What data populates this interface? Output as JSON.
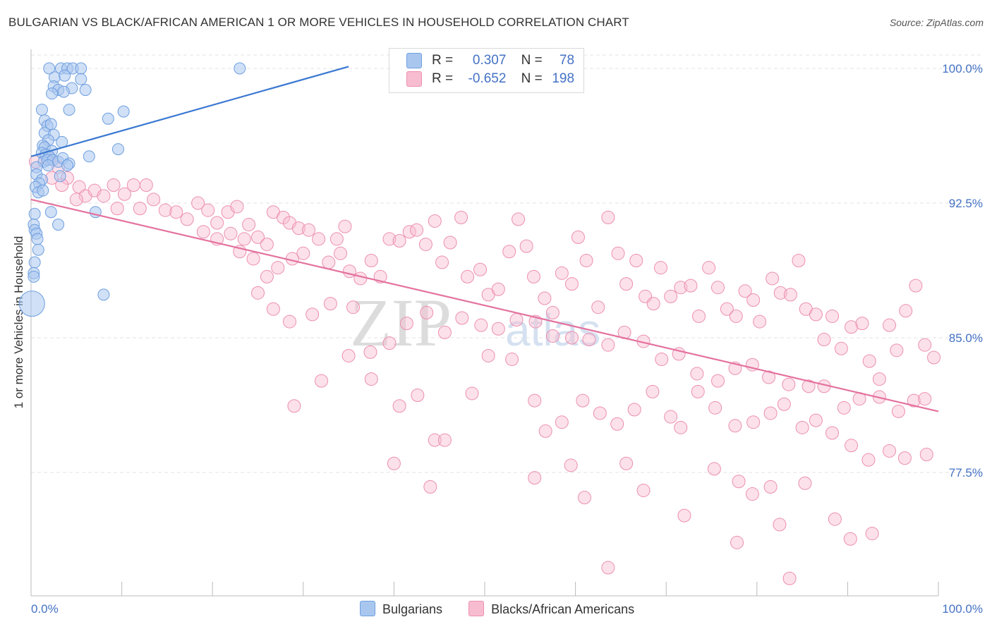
{
  "title": "BULGARIAN VS BLACK/AFRICAN AMERICAN 1 OR MORE VEHICLES IN HOUSEHOLD CORRELATION CHART",
  "source": "Source: ZipAtlas.com",
  "watermark": {
    "zip": "ZIP",
    "atlas": "atlas"
  },
  "legend": {
    "r_label": "R =",
    "n_label": "N =",
    "rows": [
      {
        "r": "0.307",
        "n": "78",
        "fill": "#a9c7ee",
        "stroke": "#6f9fe0"
      },
      {
        "r": "-0.652",
        "n": "198",
        "fill": "#f8bcd0",
        "stroke": "#ec8fb0"
      }
    ]
  },
  "bottom_legend": [
    "Bulgarians",
    "Blacks/African Americans"
  ],
  "chart_data": {
    "type": "scatter",
    "title": "BULGARIAN VS BLACK/AFRICAN AMERICAN 1 OR MORE VEHICLES IN HOUSEHOLD CORRELATION CHART",
    "xlabel": "",
    "ylabel": "1 or more Vehicles in Household",
    "xlim": [
      0,
      100
    ],
    "ylim": [
      70,
      100.8
    ],
    "x_tick_labels": [
      "0.0%",
      "100.0%"
    ],
    "y_ticks": [
      77.5,
      85.0,
      92.5,
      100.0
    ],
    "y_tick_labels": [
      "77.5%",
      "85.0%",
      "92.5%",
      "100.0%"
    ],
    "grid": true,
    "legend_position": "top-center",
    "colors": {
      "blue": "#6f9fe0",
      "blue_fill": "#a9c7ee",
      "pink": "#ec8fb0",
      "pink_fill": "#f8bcd0",
      "blue_line": "#3a78d1",
      "pink_line": "#e4729e",
      "axis_text": "#4472c4"
    },
    "series": [
      {
        "name": "Bulgarians",
        "r": 0.307,
        "n": 78,
        "trend": {
          "x": [
            0,
            35
          ],
          "y": [
            95.1,
            100.1
          ]
        },
        "points": [
          [
            2.0,
            100.0
          ],
          [
            3.3,
            100.0
          ],
          [
            4.0,
            100.0
          ],
          [
            4.6,
            100.0
          ],
          [
            5.5,
            100.0
          ],
          [
            23.0,
            100.0
          ],
          [
            2.6,
            99.5
          ],
          [
            3.7,
            99.6
          ],
          [
            5.5,
            99.4
          ],
          [
            2.5,
            99.0
          ],
          [
            3.0,
            98.8
          ],
          [
            4.5,
            98.9
          ],
          [
            6.0,
            98.8
          ],
          [
            2.3,
            98.6
          ],
          [
            3.6,
            98.7
          ],
          [
            1.2,
            97.7
          ],
          [
            4.2,
            97.7
          ],
          [
            8.5,
            97.2
          ],
          [
            10.2,
            97.6
          ],
          [
            1.5,
            97.1
          ],
          [
            1.8,
            96.8
          ],
          [
            2.2,
            96.9
          ],
          [
            1.5,
            96.4
          ],
          [
            2.5,
            96.3
          ],
          [
            1.9,
            96.0
          ],
          [
            1.3,
            95.7
          ],
          [
            1.5,
            95.6
          ],
          [
            2.3,
            95.4
          ],
          [
            3.4,
            95.9
          ],
          [
            9.6,
            95.5
          ],
          [
            1.2,
            95.3
          ],
          [
            1.6,
            95.2
          ],
          [
            2.0,
            95.1
          ],
          [
            6.4,
            95.1
          ],
          [
            1.4,
            94.8
          ],
          [
            1.8,
            94.9
          ],
          [
            2.4,
            94.9
          ],
          [
            3.0,
            94.8
          ],
          [
            3.5,
            95.0
          ],
          [
            4.2,
            94.7
          ],
          [
            1.9,
            94.6
          ],
          [
            4.0,
            94.6
          ],
          [
            0.6,
            94.5
          ],
          [
            0.6,
            94.1
          ],
          [
            3.2,
            94.0
          ],
          [
            1.2,
            93.8
          ],
          [
            0.9,
            93.6
          ],
          [
            0.5,
            93.4
          ],
          [
            0.8,
            93.1
          ],
          [
            1.3,
            93.2
          ],
          [
            7.1,
            92.0
          ],
          [
            0.4,
            91.9
          ],
          [
            2.2,
            92.0
          ],
          [
            0.3,
            91.3
          ],
          [
            0.4,
            91.0
          ],
          [
            3.0,
            91.3
          ],
          [
            0.6,
            90.8
          ],
          [
            0.7,
            90.5
          ],
          [
            0.8,
            89.9
          ],
          [
            0.4,
            89.2
          ],
          [
            0.3,
            88.6
          ],
          [
            0.3,
            88.4
          ],
          [
            8.0,
            87.4
          ],
          [
            0.1,
            86.9
          ]
        ]
      },
      {
        "name": "Blacks/African Americans",
        "r": -0.652,
        "n": 198,
        "trend": {
          "x": [
            0,
            100
          ],
          "y": [
            92.7,
            80.9
          ]
        },
        "points": [
          [
            0.5,
            94.8
          ],
          [
            2.0,
            95.0
          ],
          [
            3.0,
            94.5
          ],
          [
            4.0,
            93.9
          ],
          [
            2.3,
            93.9
          ],
          [
            3.4,
            93.5
          ],
          [
            5.3,
            93.4
          ],
          [
            6.0,
            92.9
          ],
          [
            7.0,
            93.2
          ],
          [
            5.0,
            92.7
          ],
          [
            8.0,
            92.9
          ],
          [
            9.1,
            93.5
          ],
          [
            10.3,
            93.0
          ],
          [
            11.3,
            93.5
          ],
          [
            12.7,
            93.5
          ],
          [
            9.5,
            92.2
          ],
          [
            12.0,
            92.2
          ],
          [
            13.5,
            92.7
          ],
          [
            14.8,
            92.1
          ],
          [
            16.0,
            92.0
          ],
          [
            17.2,
            91.6
          ],
          [
            18.4,
            92.5
          ],
          [
            19.5,
            92.1
          ],
          [
            20.5,
            91.4
          ],
          [
            21.7,
            92.0
          ],
          [
            22.7,
            92.3
          ],
          [
            24.0,
            91.3
          ],
          [
            19.0,
            90.9
          ],
          [
            20.5,
            90.5
          ],
          [
            22.0,
            90.8
          ],
          [
            23.5,
            90.5
          ],
          [
            25.0,
            90.6
          ],
          [
            26.0,
            90.2
          ],
          [
            26.7,
            92.0
          ],
          [
            27.8,
            91.7
          ],
          [
            28.5,
            91.4
          ],
          [
            29.5,
            91.1
          ],
          [
            30.6,
            91.0
          ],
          [
            31.7,
            90.5
          ],
          [
            30.0,
            89.7
          ],
          [
            28.8,
            89.4
          ],
          [
            27.2,
            88.9
          ],
          [
            26.0,
            88.4
          ],
          [
            24.5,
            89.4
          ],
          [
            23.0,
            89.8
          ],
          [
            32.8,
            89.2
          ],
          [
            33.7,
            90.5
          ],
          [
            34.6,
            91.2
          ],
          [
            34.1,
            89.7
          ],
          [
            35.1,
            88.7
          ],
          [
            36.3,
            88.3
          ],
          [
            37.5,
            89.3
          ],
          [
            38.5,
            88.4
          ],
          [
            39.5,
            90.5
          ],
          [
            40.6,
            90.4
          ],
          [
            41.7,
            90.9
          ],
          [
            42.5,
            91.0
          ],
          [
            43.5,
            90.2
          ],
          [
            44.5,
            91.5
          ],
          [
            45.3,
            89.2
          ],
          [
            46.2,
            90.3
          ],
          [
            47.4,
            91.7
          ],
          [
            48.1,
            88.4
          ],
          [
            49.5,
            88.8
          ],
          [
            50.4,
            87.4
          ],
          [
            51.5,
            87.7
          ],
          [
            52.7,
            89.8
          ],
          [
            53.7,
            91.6
          ],
          [
            54.6,
            90.1
          ],
          [
            55.4,
            88.4
          ],
          [
            56.6,
            87.2
          ],
          [
            57.5,
            86.4
          ],
          [
            58.5,
            88.6
          ],
          [
            59.6,
            88.0
          ],
          [
            60.3,
            90.6
          ],
          [
            61.2,
            89.3
          ],
          [
            62.5,
            86.7
          ],
          [
            63.6,
            91.7
          ],
          [
            64.7,
            89.7
          ],
          [
            65.6,
            88.0
          ],
          [
            66.7,
            89.3
          ],
          [
            67.7,
            87.3
          ],
          [
            68.6,
            86.9
          ],
          [
            69.4,
            88.9
          ],
          [
            70.5,
            87.3
          ],
          [
            71.6,
            87.8
          ],
          [
            72.7,
            87.9
          ],
          [
            73.6,
            86.2
          ],
          [
            74.7,
            88.9
          ],
          [
            75.7,
            87.8
          ],
          [
            76.7,
            86.6
          ],
          [
            77.7,
            86.2
          ],
          [
            78.7,
            87.6
          ],
          [
            79.6,
            87.1
          ],
          [
            80.3,
            85.9
          ],
          [
            81.7,
            88.3
          ],
          [
            82.6,
            87.5
          ],
          [
            83.7,
            87.4
          ],
          [
            84.6,
            89.3
          ],
          [
            85.4,
            86.6
          ],
          [
            86.5,
            86.3
          ],
          [
            87.4,
            84.9
          ],
          [
            88.3,
            86.2
          ],
          [
            89.3,
            84.4
          ],
          [
            90.4,
            85.6
          ],
          [
            91.6,
            85.8
          ],
          [
            92.4,
            83.7
          ],
          [
            93.5,
            82.7
          ],
          [
            94.6,
            85.7
          ],
          [
            95.4,
            84.3
          ],
          [
            96.4,
            86.5
          ],
          [
            97.5,
            87.9
          ],
          [
            98.5,
            84.6
          ],
          [
            99.5,
            83.9
          ],
          [
            25.0,
            87.5
          ],
          [
            26.7,
            86.6
          ],
          [
            28.5,
            85.9
          ],
          [
            31.0,
            86.3
          ],
          [
            33.0,
            86.9
          ],
          [
            35.5,
            86.7
          ],
          [
            37.4,
            84.2
          ],
          [
            39.5,
            84.7
          ],
          [
            41.4,
            85.8
          ],
          [
            43.6,
            86.4
          ],
          [
            45.6,
            85.3
          ],
          [
            47.5,
            86.1
          ],
          [
            49.6,
            85.7
          ],
          [
            51.5,
            85.5
          ],
          [
            53.5,
            86.0
          ],
          [
            55.6,
            85.9
          ],
          [
            57.5,
            85.1
          ],
          [
            59.6,
            85.0
          ],
          [
            61.5,
            84.9
          ],
          [
            63.6,
            84.6
          ],
          [
            65.4,
            85.3
          ],
          [
            67.5,
            84.8
          ],
          [
            69.5,
            83.8
          ],
          [
            71.4,
            84.1
          ],
          [
            73.4,
            83.0
          ],
          [
            75.7,
            82.6
          ],
          [
            77.6,
            83.3
          ],
          [
            79.5,
            83.5
          ],
          [
            81.3,
            82.8
          ],
          [
            83.5,
            82.4
          ],
          [
            85.7,
            82.3
          ],
          [
            87.4,
            82.3
          ],
          [
            89.6,
            81.1
          ],
          [
            91.3,
            81.6
          ],
          [
            93.5,
            81.7
          ],
          [
            95.6,
            80.9
          ],
          [
            97.3,
            81.5
          ],
          [
            98.5,
            81.6
          ],
          [
            29.0,
            81.2
          ],
          [
            32.0,
            82.6
          ],
          [
            35.0,
            84.0
          ],
          [
            37.5,
            82.7
          ],
          [
            40.6,
            81.2
          ],
          [
            42.6,
            81.8
          ],
          [
            44.5,
            79.3
          ],
          [
            45.6,
            79.3
          ],
          [
            48.6,
            81.9
          ],
          [
            50.4,
            84.0
          ],
          [
            53.0,
            83.8
          ],
          [
            55.5,
            81.5
          ],
          [
            56.7,
            79.8
          ],
          [
            58.5,
            80.3
          ],
          [
            60.8,
            81.5
          ],
          [
            62.7,
            80.8
          ],
          [
            64.6,
            80.2
          ],
          [
            66.5,
            81.0
          ],
          [
            68.5,
            82.0
          ],
          [
            70.5,
            80.6
          ],
          [
            71.6,
            80.0
          ],
          [
            73.5,
            82.0
          ],
          [
            75.4,
            81.1
          ],
          [
            77.6,
            80.1
          ],
          [
            79.6,
            80.3
          ],
          [
            81.5,
            80.8
          ],
          [
            83.0,
            81.3
          ],
          [
            85.0,
            80.0
          ],
          [
            86.5,
            80.4
          ],
          [
            88.3,
            79.7
          ],
          [
            90.4,
            79.0
          ],
          [
            92.3,
            78.2
          ],
          [
            94.6,
            78.7
          ],
          [
            96.3,
            78.3
          ],
          [
            98.7,
            78.5
          ],
          [
            40.0,
            78.0
          ],
          [
            44.0,
            76.7
          ],
          [
            55.5,
            77.2
          ],
          [
            59.5,
            77.9
          ],
          [
            61.0,
            76.1
          ],
          [
            65.6,
            78.0
          ],
          [
            67.5,
            76.5
          ],
          [
            72.0,
            75.1
          ],
          [
            75.3,
            77.7
          ],
          [
            78.0,
            77.0
          ],
          [
            79.5,
            76.3
          ],
          [
            82.5,
            74.6
          ],
          [
            85.3,
            76.9
          ],
          [
            88.6,
            74.9
          ],
          [
            90.3,
            73.8
          ],
          [
            92.7,
            74.1
          ],
          [
            63.6,
            72.2
          ],
          [
            83.6,
            71.6
          ],
          [
            77.8,
            73.6
          ],
          [
            81.5,
            76.7
          ]
        ]
      }
    ]
  }
}
